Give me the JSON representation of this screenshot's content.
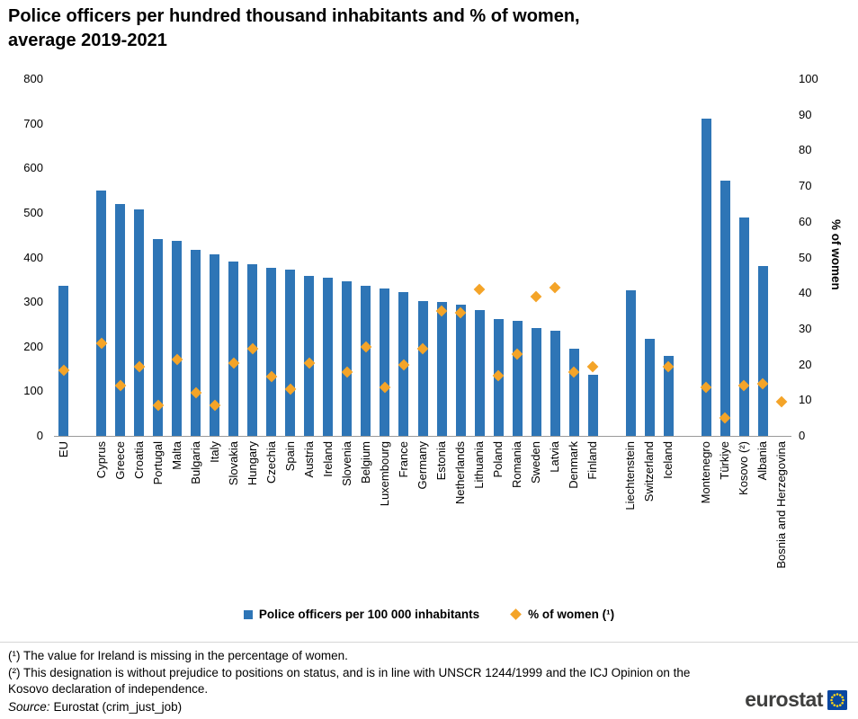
{
  "title": {
    "line1": "Police officers per hundred thousand inhabitants and % of women,",
    "line2": "average 2019-2021"
  },
  "chart_data": {
    "type": "bar",
    "title": "Police officers per hundred thousand inhabitants and % of women, average 2019-2021",
    "grid": false,
    "legend_position": "bottom",
    "left_axis": {
      "min": 0,
      "max": 800,
      "tick_step": 100
    },
    "right_axis": {
      "min": 0,
      "max": 100,
      "tick_step": 10,
      "label": "% of women"
    },
    "series": [
      {
        "name": "Police officers per 100 000 inhabitants",
        "type": "bar",
        "marker": "square",
        "color": "#2e75b6",
        "axis": "left"
      },
      {
        "name": "% of women (¹)",
        "type": "scatter",
        "marker": "diamond",
        "color": "#f4a428",
        "axis": "right"
      }
    ],
    "groups": [
      [
        {
          "label": "EU",
          "officers": 337,
          "pct_women": 18.5
        }
      ],
      [
        {
          "label": "Cyprus",
          "officers": 551,
          "pct_women": 26
        },
        {
          "label": "Greece",
          "officers": 519,
          "pct_women": 14
        },
        {
          "label": "Croatia",
          "officers": 507,
          "pct_women": 19.5
        },
        {
          "label": "Portugal",
          "officers": 441,
          "pct_women": 8.5
        },
        {
          "label": "Malta",
          "officers": 437,
          "pct_women": 21.5
        },
        {
          "label": "Bulgaria",
          "officers": 417,
          "pct_women": 12
        },
        {
          "label": "Italy",
          "officers": 407,
          "pct_women": 8.5
        },
        {
          "label": "Slovakia",
          "officers": 391,
          "pct_women": 20.5
        },
        {
          "label": "Hungary",
          "officers": 384,
          "pct_women": 24.5
        },
        {
          "label": "Czechia",
          "officers": 377,
          "pct_women": 16.5
        },
        {
          "label": "Spain",
          "officers": 373,
          "pct_women": 13
        },
        {
          "label": "Austria",
          "officers": 359,
          "pct_women": 20.5
        },
        {
          "label": "Ireland",
          "officers": 355,
          "pct_women": null
        },
        {
          "label": "Slovenia",
          "officers": 347,
          "pct_women": 18
        },
        {
          "label": "Belgium",
          "officers": 336,
          "pct_women": 25
        },
        {
          "label": "Luxembourg",
          "officers": 331,
          "pct_women": 13.5
        },
        {
          "label": "France",
          "officers": 322,
          "pct_women": 20
        },
        {
          "label": "Germany",
          "officers": 302,
          "pct_women": 24.5
        },
        {
          "label": "Estonia",
          "officers": 300,
          "pct_women": 35
        },
        {
          "label": "Netherlands",
          "officers": 294,
          "pct_women": 34.5
        },
        {
          "label": "Lithuania",
          "officers": 282,
          "pct_women": 41
        },
        {
          "label": "Poland",
          "officers": 262,
          "pct_women": 17
        },
        {
          "label": "Romania",
          "officers": 258,
          "pct_women": 23
        },
        {
          "label": "Sweden",
          "officers": 242,
          "pct_women": 39
        },
        {
          "label": "Latvia",
          "officers": 236,
          "pct_women": 41.5
        },
        {
          "label": "Denmark",
          "officers": 195,
          "pct_women": 18
        },
        {
          "label": "Finland",
          "officers": 137,
          "pct_women": 19.5
        }
      ],
      [
        {
          "label": "Liechtenstein",
          "officers": 326,
          "pct_women": null
        },
        {
          "label": "Switzerland",
          "officers": 218,
          "pct_women": null
        },
        {
          "label": "Iceland",
          "officers": 179,
          "pct_women": 19.5
        }
      ],
      [
        {
          "label": "Montenegro",
          "officers": 712,
          "pct_women": 13.5
        },
        {
          "label": "Türkiye",
          "officers": 573,
          "pct_women": 5
        },
        {
          "label": "Kosovo (²)",
          "officers": 490,
          "pct_women": 14
        },
        {
          "label": "Albania",
          "officers": 380,
          "pct_women": 14.5
        },
        {
          "label": "Bosnia and Herzegovina",
          "officers": null,
          "pct_women": 9.5
        }
      ]
    ]
  },
  "footnotes": [
    "(¹) The value for Ireland is missing in the percentage of women.",
    "(²) This designation is without prejudice to positions on status, and is in line with UNSCR 1244/1999 and the ICJ Opinion on the Kosovo declaration of independence."
  ],
  "source": {
    "prefix": "Source:",
    "text": "Eurostat (crim_just_job)"
  },
  "logo": {
    "text": "eurostat"
  },
  "colors": {
    "bar": "#2e75b6",
    "diamond": "#f4a428",
    "axis_line": "#9a9a9a",
    "flag_blue": "#0a47a0",
    "flag_star": "#ffd617"
  }
}
